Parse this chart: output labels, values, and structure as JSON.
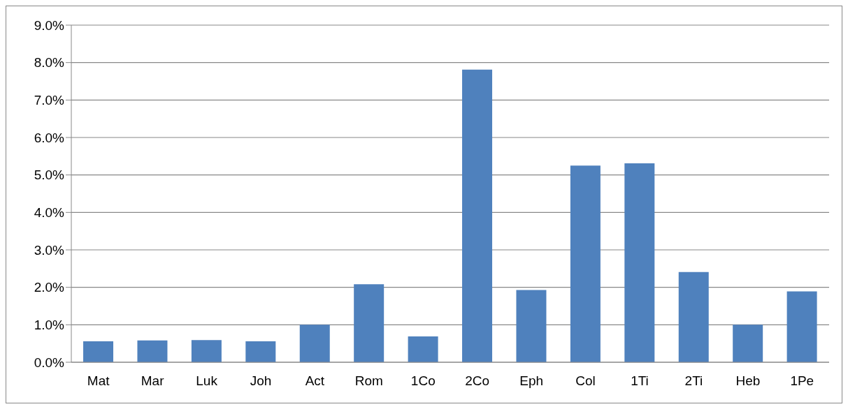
{
  "chart_data": {
    "type": "bar",
    "categories": [
      "Mat",
      "Mar",
      "Luk",
      "Joh",
      "Act",
      "Rom",
      "1Co",
      "2Co",
      "Eph",
      "Col",
      "1Ti",
      "2Ti",
      "Heb",
      "1Pe"
    ],
    "values": [
      0.56,
      0.58,
      0.59,
      0.56,
      1.0,
      2.08,
      0.69,
      7.81,
      1.93,
      5.25,
      5.31,
      2.41,
      1.0,
      1.89
    ],
    "color": "#4f81bd",
    "ylim": [
      0,
      9
    ],
    "yticks": [
      {
        "value": 0,
        "label": "0.0%"
      },
      {
        "value": 1,
        "label": "1.0%"
      },
      {
        "value": 2,
        "label": "2.0%"
      },
      {
        "value": 3,
        "label": "3.0%"
      },
      {
        "value": 4,
        "label": "4.0%"
      },
      {
        "value": 5,
        "label": "5.0%"
      },
      {
        "value": 6,
        "label": "6.0%"
      },
      {
        "value": 7,
        "label": "7.0%"
      },
      {
        "value": 8,
        "label": "8.0%"
      },
      {
        "value": 9,
        "label": "9.0%"
      }
    ],
    "grid": "y",
    "legend": false
  }
}
